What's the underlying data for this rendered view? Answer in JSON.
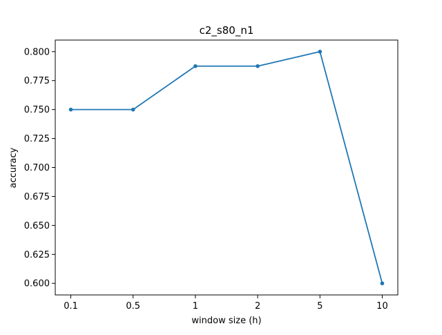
{
  "chart_data": {
    "type": "line",
    "title": "c2_s80_n1",
    "xlabel": "window size (h)",
    "ylabel": "accuracy",
    "categories": [
      "0.1",
      "0.5",
      "1",
      "2",
      "5",
      "10"
    ],
    "series": [
      {
        "values": [
          0.75,
          0.75,
          0.7875,
          0.7875,
          0.8,
          0.6
        ],
        "color": "#1f77b4",
        "marker": "circle"
      }
    ],
    "ylim": [
      0.59,
      0.81
    ],
    "yticks": [
      "0.600",
      "0.625",
      "0.650",
      "0.675",
      "0.700",
      "0.725",
      "0.750",
      "0.775",
      "0.800"
    ],
    "grid": false,
    "legend": "none"
  }
}
